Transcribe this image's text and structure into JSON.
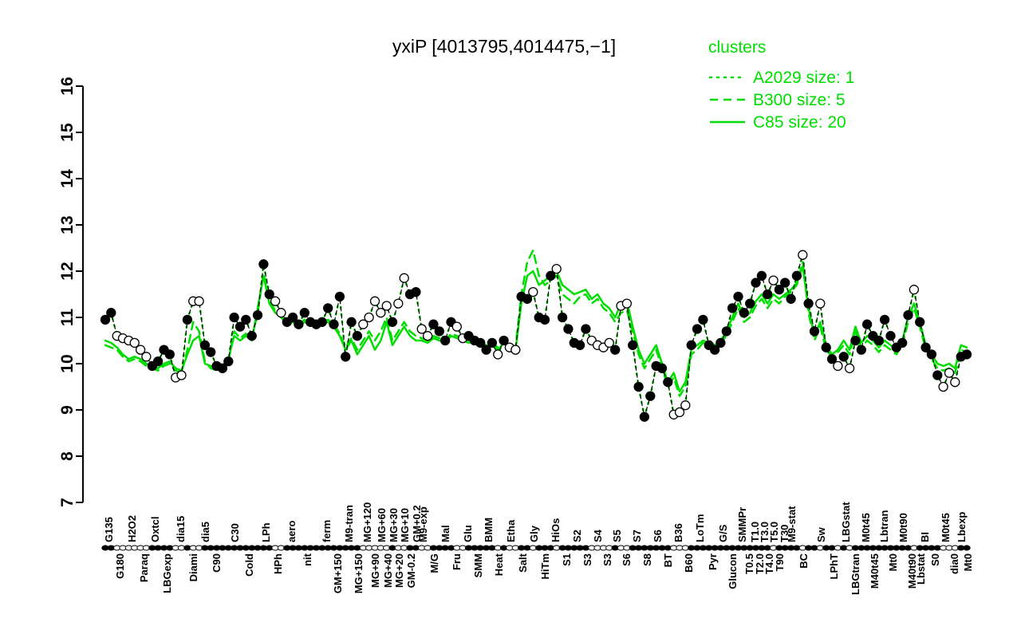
{
  "chart_data": {
    "type": "line",
    "title": "yxiP [4013795,4014475,−1]",
    "legend_title": "clusters",
    "legend_position": "top-right",
    "ylim": [
      7,
      16
    ],
    "yticks": [
      7,
      8,
      9,
      10,
      11,
      12,
      13,
      14,
      15,
      16
    ],
    "grid": false,
    "colors": {
      "cluster_green": "#00DD00",
      "points_black": "#000000",
      "open_point_fill": "#ffffff"
    },
    "series": [
      {
        "name": "A2029",
        "size": 1,
        "legend_label": "A2029 size: 1",
        "style": "dotted",
        "values_ref": "points"
      },
      {
        "name": "B300",
        "size": 5,
        "legend_label": "B300 size: 5",
        "style": "dashed",
        "values": [
          10.4,
          10.35,
          10.3,
          10.15,
          10.05,
          10.1,
          10.05,
          9.95,
          9.9,
          9.85,
          9.95,
          10.0,
          9.85,
          9.8,
          10.3,
          10.9,
          10.7,
          10.05,
          9.9,
          9.85,
          9.9,
          10.05,
          10.7,
          10.55,
          10.65,
          10.55,
          11.1,
          11.95,
          11.35,
          11.15,
          11.05,
          10.9,
          10.95,
          10.85,
          10.95,
          10.9,
          10.85,
          10.9,
          10.95,
          10.85,
          10.65,
          10.35,
          10.55,
          10.3,
          10.5,
          10.7,
          10.5,
          10.7,
          11.0,
          10.5,
          10.7,
          10.9,
          10.7,
          10.6,
          10.55,
          10.5,
          10.6,
          10.55,
          10.5,
          10.65,
          10.6,
          10.55,
          10.5,
          10.55,
          10.45,
          10.4,
          10.45,
          10.35,
          10.5,
          10.4,
          10.35,
          11.5,
          12.2,
          12.45,
          11.9,
          11.7,
          11.8,
          11.9,
          11.5,
          11.4,
          11.3,
          11.45,
          11.5,
          11.3,
          11.4,
          11.2,
          11.1,
          10.9,
          11.1,
          11.15,
          10.7,
          10.2,
          9.9,
          10.1,
          10.3,
          9.9,
          9.5,
          9.7,
          9.3,
          9.5,
          10.2,
          10.3,
          10.45,
          10.4,
          10.35,
          10.45,
          10.6,
          10.9,
          11.2,
          10.9,
          11.0,
          11.25,
          11.4,
          11.2,
          11.4,
          11.3,
          11.45,
          11.55,
          11.7,
          12.2,
          11.1,
          10.5,
          10.8,
          10.3,
          10.15,
          10.25,
          10.4,
          10.2,
          10.7,
          10.35,
          10.5,
          10.4,
          10.25,
          10.4,
          10.3,
          10.2,
          10.4,
          10.9,
          11.2,
          10.8,
          10.3,
          10.1,
          9.9,
          9.85,
          9.9,
          9.8,
          10.3,
          10.25
        ]
      },
      {
        "name": "C85",
        "size": 20,
        "legend_label": "C85 size: 20",
        "style": "solid",
        "values": [
          10.5,
          10.45,
          10.35,
          10.2,
          10.1,
          10.15,
          10.1,
          10.0,
          9.95,
          9.9,
          10.0,
          10.05,
          9.9,
          9.85,
          10.2,
          10.5,
          10.6,
          10.0,
          9.95,
          9.9,
          9.95,
          10.1,
          10.6,
          10.5,
          10.6,
          10.5,
          11.2,
          11.9,
          11.3,
          11.1,
          11.0,
          10.85,
          10.9,
          10.8,
          10.9,
          10.85,
          10.8,
          10.85,
          10.9,
          10.8,
          10.6,
          10.3,
          10.5,
          10.2,
          10.4,
          10.6,
          10.3,
          10.5,
          10.9,
          10.4,
          10.6,
          10.8,
          10.6,
          10.5,
          10.5,
          10.45,
          10.55,
          10.5,
          10.45,
          10.6,
          10.55,
          10.5,
          10.45,
          10.5,
          10.4,
          10.35,
          10.4,
          10.3,
          10.45,
          10.35,
          10.3,
          11.3,
          11.9,
          12.0,
          11.7,
          11.8,
          11.9,
          12.0,
          11.7,
          11.6,
          11.5,
          11.55,
          11.6,
          11.4,
          11.5,
          11.3,
          11.2,
          11.0,
          11.3,
          11.35,
          10.8,
          10.3,
          10.0,
          10.2,
          10.4,
          10.0,
          9.6,
          9.8,
          9.4,
          9.6,
          10.3,
          10.4,
          10.5,
          10.45,
          10.4,
          10.5,
          10.7,
          11.0,
          11.3,
          11.0,
          11.1,
          11.35,
          11.5,
          11.3,
          11.5,
          11.4,
          11.5,
          11.6,
          11.75,
          12.1,
          11.2,
          10.6,
          10.9,
          10.4,
          10.2,
          10.3,
          10.5,
          10.3,
          10.8,
          10.45,
          10.6,
          10.5,
          10.35,
          10.5,
          10.4,
          10.3,
          10.5,
          11.0,
          11.3,
          10.9,
          10.4,
          10.2,
          10.0,
          9.95,
          10.0,
          9.9,
          10.4,
          10.35
        ]
      }
    ],
    "points": {
      "style": "circles-with-dashed-line",
      "values": [
        10.95,
        11.1,
        10.6,
        10.55,
        10.5,
        10.45,
        10.3,
        10.15,
        9.95,
        10.05,
        10.3,
        10.2,
        9.7,
        9.75,
        10.95,
        11.35,
        11.35,
        10.4,
        10.25,
        9.95,
        9.9,
        10.05,
        11.0,
        10.8,
        10.95,
        10.6,
        11.05,
        12.15,
        11.5,
        11.35,
        11.1,
        10.9,
        11.0,
        10.85,
        11.1,
        10.9,
        10.85,
        10.9,
        11.2,
        10.85,
        11.45,
        10.15,
        10.9,
        10.6,
        10.85,
        11.0,
        11.35,
        11.1,
        11.25,
        10.9,
        11.3,
        11.85,
        11.5,
        11.55,
        10.75,
        10.6,
        10.85,
        10.7,
        10.5,
        10.9,
        10.8,
        10.55,
        10.6,
        10.5,
        10.45,
        10.3,
        10.45,
        10.2,
        10.5,
        10.35,
        10.3,
        11.45,
        11.4,
        11.55,
        11.0,
        10.95,
        11.9,
        12.05,
        11.0,
        10.75,
        10.45,
        10.4,
        10.75,
        10.5,
        10.4,
        10.35,
        10.45,
        10.3,
        11.25,
        11.3,
        10.4,
        9.5,
        8.85,
        9.3,
        9.95,
        9.9,
        9.6,
        8.9,
        8.95,
        9.1,
        10.4,
        10.75,
        10.95,
        10.4,
        10.3,
        10.45,
        10.7,
        11.2,
        11.45,
        11.1,
        11.3,
        11.75,
        11.9,
        11.5,
        11.8,
        11.6,
        11.75,
        11.4,
        11.9,
        12.35,
        11.3,
        10.7,
        11.3,
        10.35,
        10.1,
        9.95,
        10.15,
        9.9,
        10.5,
        10.3,
        10.85,
        10.6,
        10.5,
        10.95,
        10.6,
        10.35,
        10.45,
        11.05,
        11.6,
        10.9,
        10.35,
        10.2,
        9.75,
        9.5,
        9.8,
        9.6,
        10.15,
        10.2
      ],
      "fills": "ffooooooffffoofooffffffffffffoofffffffffffffooooofooffooffffoofffffofooffofffofffffoooofoofffffffoooffffffffffffffoffffoffoffofoffffffffffoffffoooff"
    },
    "x_axis": {
      "label_rows": 2,
      "labels": [
        [
          "G135",
          137,
          1
        ],
        [
          "G180",
          151,
          2
        ],
        [
          "H2O2",
          166,
          1
        ],
        [
          "Paraq",
          181,
          2
        ],
        [
          "Oxtcl",
          195,
          1
        ],
        [
          "LBGexp",
          210,
          2
        ],
        [
          "dia15",
          227,
          1
        ],
        [
          "Diami",
          243,
          2
        ],
        [
          "dia5",
          258,
          1
        ],
        [
          "C90",
          272,
          2
        ],
        [
          "C30",
          295,
          1
        ],
        [
          "Cold",
          313,
          2
        ],
        [
          "LPh",
          334,
          1
        ],
        [
          "HPh",
          349,
          2
        ],
        [
          "aero",
          366,
          1
        ],
        [
          "nit",
          386,
          2
        ],
        [
          "ferm",
          410,
          1
        ],
        [
          "GM+150",
          424,
          2
        ],
        [
          "M9-tran",
          438,
          1
        ],
        [
          "MG+150",
          450,
          2
        ],
        [
          "MG+120",
          461,
          1
        ],
        [
          "MG+90",
          471,
          2
        ],
        [
          "MG+60",
          479,
          1
        ],
        [
          "MG+40",
          487,
          2
        ],
        [
          "MG+30",
          494,
          1
        ],
        [
          "MG+20",
          501,
          2
        ],
        [
          "MG+10",
          508,
          1
        ],
        [
          "GM-0.2",
          516,
          2
        ],
        [
          "GM+0.2",
          523,
          1
        ],
        [
          "M9-exp",
          531,
          1
        ],
        [
          "M/G",
          545,
          2
        ],
        [
          "Mal",
          559,
          1
        ],
        [
          "Fru",
          573,
          2
        ],
        [
          "Glu",
          587,
          1
        ],
        [
          "SMM",
          600,
          2
        ],
        [
          "BMM",
          613,
          1
        ],
        [
          "Heat",
          626,
          2
        ],
        [
          "Etha",
          641,
          1
        ],
        [
          "Salt",
          656,
          2
        ],
        [
          "Gly",
          670,
          1
        ],
        [
          "HiTm",
          684,
          2
        ],
        [
          "HiOs",
          697,
          1
        ],
        [
          "S1",
          711,
          2
        ],
        [
          "S2",
          724,
          1
        ],
        [
          "S3",
          737,
          2
        ],
        [
          "S4",
          750,
          1
        ],
        [
          "S3",
          762,
          2
        ],
        [
          "S5",
          774,
          1
        ],
        [
          "S6",
          786,
          2
        ],
        [
          "S7",
          799,
          1
        ],
        [
          "S8",
          812,
          2
        ],
        [
          "S6",
          825,
          1
        ],
        [
          "BT",
          838,
          2
        ],
        [
          "B36",
          851,
          1
        ],
        [
          "B60",
          864,
          2
        ],
        [
          "LoTm",
          878,
          1
        ],
        [
          "Pyr",
          894,
          2
        ],
        [
          "G/S",
          907,
          1
        ],
        [
          "Glucon",
          919,
          2
        ],
        [
          "SMMPr",
          931,
          1
        ],
        [
          "T0.5",
          940,
          2
        ],
        [
          "T1.0",
          947,
          1
        ],
        [
          "T2.0",
          953,
          2
        ],
        [
          "T3.0",
          959,
          1
        ],
        [
          "T4.0",
          965,
          2
        ],
        [
          "T5.0",
          971,
          1
        ],
        [
          "T90",
          978,
          2
        ],
        [
          "T30",
          984,
          1
        ],
        [
          "M9-stat",
          993,
          1
        ],
        [
          "BC",
          1008,
          2
        ],
        [
          "Sw",
          1030,
          1
        ],
        [
          "LPhT",
          1046,
          2
        ],
        [
          "LBGstat",
          1061,
          1
        ],
        [
          "LBGtran",
          1073,
          2
        ],
        [
          "M0t45",
          1086,
          1
        ],
        [
          "M40t45",
          1097,
          2
        ],
        [
          "Lbtran",
          1109,
          1
        ],
        [
          "Mt0",
          1120,
          2
        ],
        [
          "M0t90",
          1133,
          1
        ],
        [
          "M40t90",
          1144,
          2
        ],
        [
          "Lbstat",
          1155,
          2
        ],
        [
          "BI",
          1160,
          1
        ],
        [
          "S0",
          1173,
          2
        ],
        [
          "M0t45",
          1186,
          1
        ],
        [
          "dia0",
          1197,
          2
        ],
        [
          "Lbexp",
          1206,
          1
        ],
        [
          "Mt0",
          1214,
          2
        ]
      ]
    }
  }
}
